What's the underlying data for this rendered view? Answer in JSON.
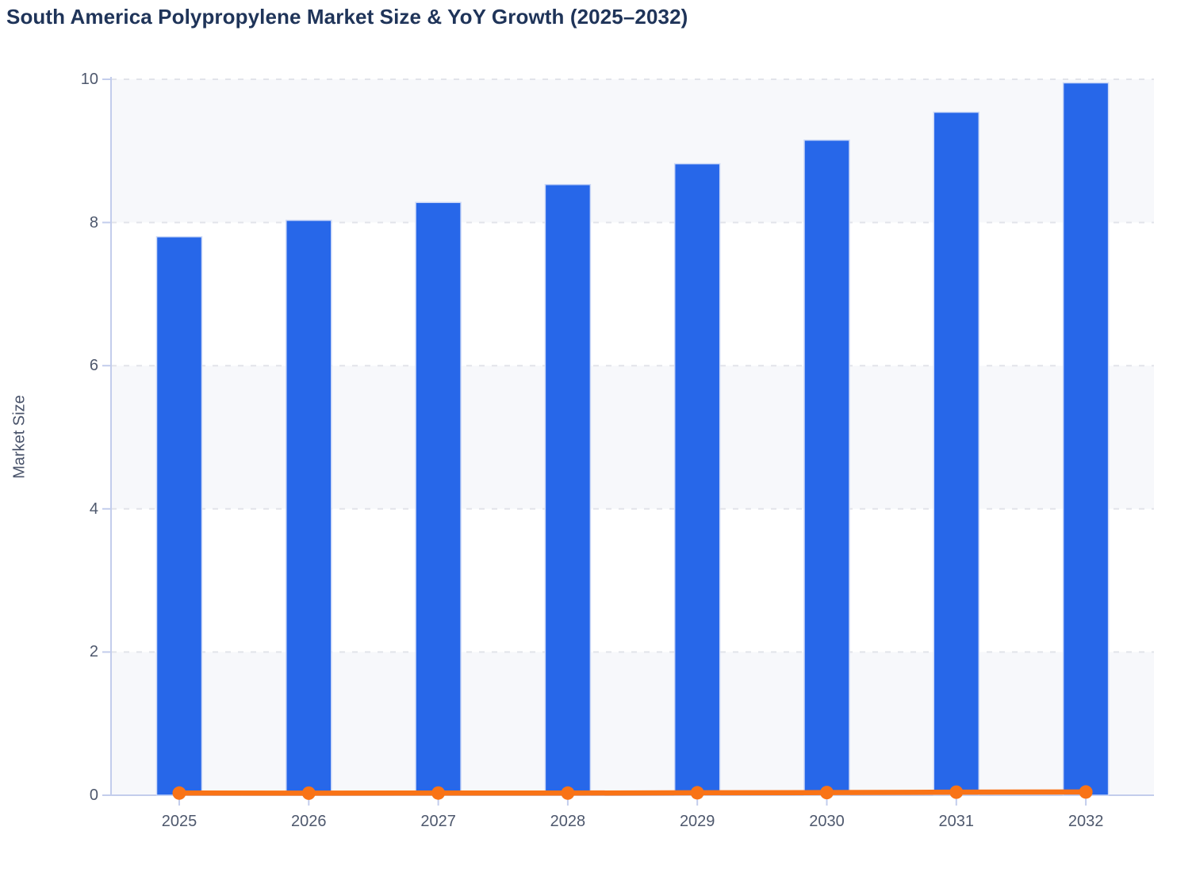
{
  "title": "South America Polypropylene Market Size & YoY Growth (2025–2032)",
  "chart_data": {
    "type": "bar",
    "title": "South America Polypropylene Market Size & YoY Growth (2025–2032)",
    "categories": [
      "2025",
      "2026",
      "2027",
      "2028",
      "2029",
      "2030",
      "2031",
      "2032"
    ],
    "series": [
      {
        "name": "Market Size",
        "type": "bar",
        "color": "#2767e9",
        "values": [
          7.8,
          8.03,
          8.28,
          8.53,
          8.82,
          9.15,
          9.54,
          9.95
        ]
      },
      {
        "name": "YoY Growth",
        "type": "line",
        "color": "#f97316",
        "values": [
          0.03,
          0.029,
          0.031,
          0.03,
          0.034,
          0.037,
          0.043,
          0.045
        ]
      }
    ],
    "xlabel": "",
    "ylabel": "Market Size",
    "ylim": [
      0,
      10
    ],
    "yticks": [
      0,
      2,
      4,
      6,
      8,
      10
    ],
    "grid": "horizontal-dashed",
    "plot_bands": "alternating-rows",
    "legend": "none"
  },
  "colors": {
    "bar": "#2767e9",
    "bar_edge": "#cdd9f7",
    "line": "#f97316",
    "axis": "#c3cdec",
    "grid": "#e2e4ea",
    "band": "#f7f8fb",
    "title_text": "#1f3459",
    "tick_text": "#4e586d",
    "axis_title_text": "#49536a"
  }
}
